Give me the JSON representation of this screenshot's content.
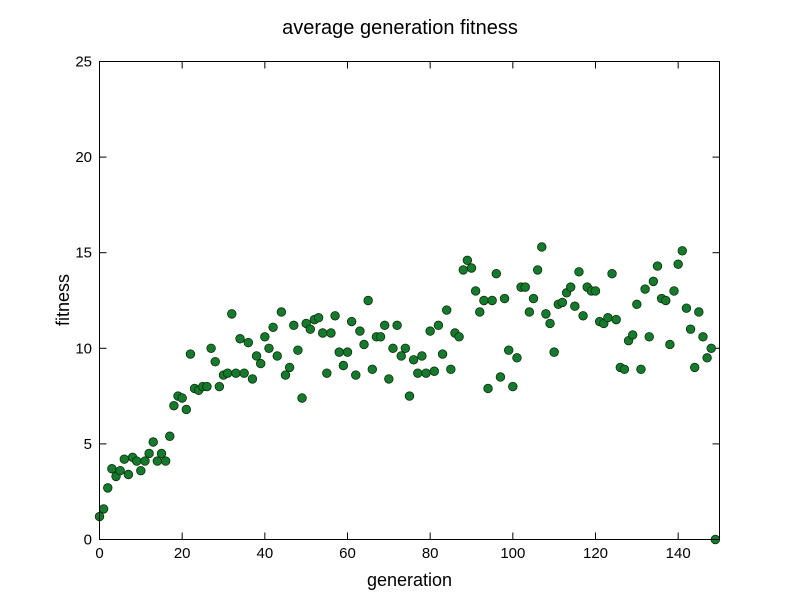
{
  "chart_data": {
    "type": "scatter",
    "title": "average generation fitness",
    "xlabel": "generation",
    "ylabel": "fitness",
    "xlim": [
      0,
      150
    ],
    "ylim": [
      0,
      25
    ],
    "xticks": [
      0,
      20,
      40,
      60,
      80,
      100,
      120,
      140
    ],
    "yticks": [
      0,
      5,
      10,
      15,
      20,
      25
    ],
    "grid": false,
    "legend": "none",
    "marker_color": "#157a2d",
    "marker_edge_color": "#0a2f0a",
    "series": [
      {
        "x": [
          0,
          1,
          2,
          3,
          4,
          5,
          6,
          7,
          8,
          9,
          10,
          11,
          12,
          13,
          14,
          15,
          16,
          17,
          18,
          19,
          20,
          21,
          22,
          23,
          24,
          25,
          26,
          27,
          28,
          29,
          30,
          31,
          32,
          33,
          34,
          35,
          36,
          37,
          38,
          39,
          40,
          41,
          42,
          43,
          44,
          45,
          46,
          47,
          48,
          49,
          50,
          51,
          52,
          53,
          54,
          55,
          56,
          57,
          58,
          59,
          60,
          61,
          62,
          63,
          64,
          65,
          66,
          67,
          68,
          69,
          70,
          71,
          72,
          73,
          74,
          75,
          76,
          77,
          78,
          79,
          80,
          81,
          82,
          83,
          84,
          85,
          86,
          87,
          88,
          89,
          90,
          91,
          92,
          93,
          94,
          95,
          96,
          97,
          98,
          99,
          100,
          101,
          102,
          103,
          104,
          105,
          106,
          107,
          108,
          109,
          110,
          111,
          112,
          113,
          114,
          115,
          116,
          117,
          118,
          119,
          120,
          121,
          122,
          123,
          124,
          125,
          126,
          127,
          128,
          129,
          130,
          131,
          132,
          133,
          134,
          135,
          136,
          137,
          138,
          139,
          140,
          141,
          142,
          143,
          144,
          145,
          146,
          147,
          148,
          149
        ],
        "y": [
          1.2,
          1.6,
          2.7,
          3.7,
          3.3,
          3.6,
          4.2,
          3.4,
          4.3,
          4.1,
          3.6,
          4.1,
          4.5,
          5.1,
          4.1,
          4.5,
          4.1,
          5.4,
          7.0,
          7.5,
          7.4,
          6.8,
          9.7,
          7.9,
          7.8,
          8.0,
          8.0,
          10.0,
          9.3,
          8.0,
          8.6,
          8.7,
          11.8,
          8.7,
          10.5,
          8.7,
          10.3,
          8.4,
          9.6,
          9.2,
          10.6,
          10.0,
          11.1,
          9.6,
          11.9,
          8.6,
          9.0,
          11.2,
          9.9,
          7.4,
          11.3,
          11.0,
          11.5,
          11.6,
          10.8,
          8.7,
          10.8,
          11.7,
          9.8,
          9.1,
          9.8,
          11.4,
          8.6,
          10.9,
          10.2,
          12.5,
          8.9,
          10.6,
          10.6,
          11.2,
          8.4,
          10.0,
          11.2,
          9.6,
          10.0,
          7.5,
          9.4,
          8.7,
          9.6,
          8.7,
          10.9,
          8.8,
          11.2,
          9.7,
          12.0,
          8.9,
          10.8,
          10.6,
          14.1,
          14.6,
          14.2,
          13.0,
          11.9,
          12.5,
          7.9,
          12.5,
          13.9,
          8.5,
          12.6,
          9.9,
          8.0,
          9.5,
          13.2,
          13.2,
          11.9,
          12.6,
          14.1,
          15.3,
          11.8,
          11.3,
          9.8,
          12.3,
          12.4,
          12.9,
          13.2,
          12.2,
          14.0,
          11.7,
          13.2,
          13.0,
          13.0,
          11.4,
          11.3,
          11.6,
          13.9,
          11.5,
          9.0,
          8.9,
          10.4,
          10.7,
          12.3,
          8.9,
          13.1,
          10.6,
          13.5,
          14.3,
          12.6,
          12.5,
          10.2,
          13.0,
          14.4,
          15.1,
          12.1,
          11.0,
          9.0,
          11.9,
          10.6,
          9.5,
          10.0,
          0.0
        ]
      }
    ]
  }
}
